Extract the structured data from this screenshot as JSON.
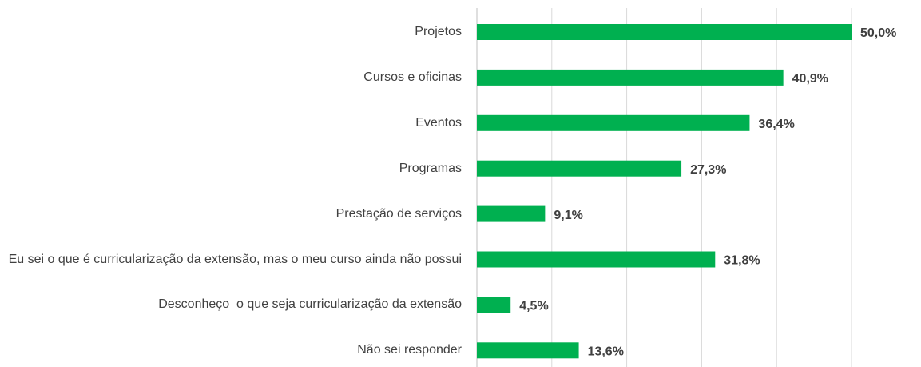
{
  "chart_data": {
    "type": "bar",
    "orientation": "horizontal",
    "categories": [
      "Projetos",
      "Cursos e oficinas",
      "Eventos",
      "Programas",
      "Prestação de serviços",
      "Eu sei o que é curricularização da extensão, mas o meu curso ainda não possui",
      "Desconheço  o que seja curricularização da extensão",
      "Não sei responder"
    ],
    "values": [
      50.0,
      40.9,
      36.4,
      27.3,
      9.1,
      31.8,
      4.5,
      13.6
    ],
    "value_labels": [
      "50,0%",
      "40,9%",
      "36,4%",
      "27,3%",
      "9,1%",
      "31,8%",
      "4,5%",
      "13,6%"
    ],
    "color": "#00b050",
    "xlim": [
      0,
      50
    ],
    "xticks": [
      0,
      10,
      20,
      30,
      40,
      50
    ],
    "grid": true
  }
}
